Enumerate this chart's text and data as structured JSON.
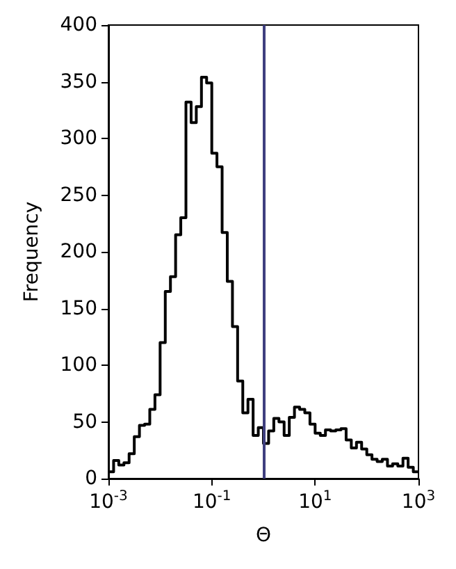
{
  "chart_data": {
    "type": "histogram",
    "xlabel": "Θ",
    "ylabel": "Frequency",
    "log": "x",
    "color": "#000000",
    "bins": [
      0.001,
      0.001259,
      0.001585,
      0.001995,
      0.002512,
      0.003162,
      0.003981,
      0.005012,
      0.00631,
      0.007943,
      0.01,
      0.01259,
      0.01585,
      0.01995,
      0.02512,
      0.03162,
      0.03981,
      0.05012,
      0.0631,
      0.07943,
      0.1,
      0.1259,
      0.1585,
      0.1995,
      0.2512,
      0.3162,
      0.3981,
      0.5012,
      0.631,
      0.7943,
      1,
      1.259,
      1.585,
      1.995,
      2.512,
      3.162,
      3.981,
      5.012,
      6.31,
      7.943,
      10,
      12.59,
      15.85,
      19.95,
      25.12,
      31.62,
      39.81,
      50.12,
      63.1,
      79.43,
      100,
      125.9,
      158.5,
      199.5,
      251.2,
      316.2,
      398.1,
      501.2,
      631,
      794.3,
      1000
    ],
    "values": [
      6,
      16,
      12,
      14,
      22,
      37,
      47,
      48,
      61,
      74,
      120,
      165,
      178,
      215,
      230,
      332,
      314,
      328,
      354,
      349,
      287,
      275,
      217,
      174,
      134,
      86,
      58,
      70,
      38,
      45,
      31,
      42,
      53,
      50,
      38,
      54,
      63,
      61,
      58,
      48,
      40,
      38,
      43,
      42,
      43,
      44,
      34,
      27,
      32,
      26,
      21,
      17,
      15,
      17,
      11,
      13,
      11,
      18,
      10,
      6
    ],
    "xlim": [
      0.001,
      1000
    ],
    "ylim": [
      0,
      400
    ],
    "xticks": [
      {
        "value": 0.001,
        "label": "10$^{-3}$"
      },
      {
        "value": 0.1,
        "label": "10$^{-1}$"
      },
      {
        "value": 10,
        "label": "10$^{1}$"
      },
      {
        "value": 1000,
        "label": "10$^{3}$"
      }
    ],
    "yticks": [
      0,
      50,
      100,
      150,
      200,
      250,
      300,
      350,
      400
    ],
    "ref_lines": [
      {
        "axis": "x",
        "value": 1,
        "color": "#3f3f7f"
      }
    ]
  }
}
